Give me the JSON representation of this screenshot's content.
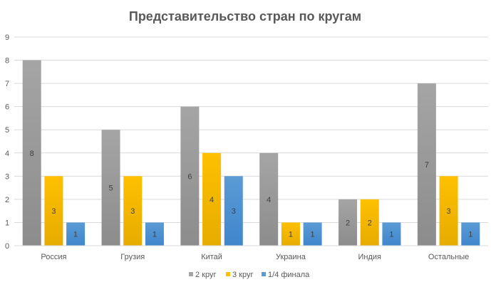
{
  "chart_data": {
    "type": "bar",
    "title": "Представительство стран по кругам",
    "xlabel": "",
    "ylabel": "",
    "ylim": [
      0,
      9
    ],
    "yticks": [
      "0",
      "1",
      "2",
      "3",
      "4",
      "5",
      "6",
      "7",
      "8",
      "9"
    ],
    "grid": true,
    "legend_position": "bottom",
    "categories": [
      "Россия",
      "Грузия",
      "Китай",
      "Украина",
      "Индия",
      "Остальные"
    ],
    "series": [
      {
        "name": "2 круг",
        "color": "#a5a5a5",
        "dark": "#8c8c8c",
        "values": [
          8,
          5,
          6,
          4,
          2,
          7
        ]
      },
      {
        "name": "3 круг",
        "color": "#ffc000",
        "dark": "#e6ac00",
        "values": [
          3,
          3,
          4,
          1,
          2,
          3
        ]
      },
      {
        "name": "1/4 финала",
        "color": "#5b9bd5",
        "dark": "#3f86cc",
        "values": [
          1,
          1,
          3,
          1,
          1,
          1
        ]
      }
    ]
  }
}
